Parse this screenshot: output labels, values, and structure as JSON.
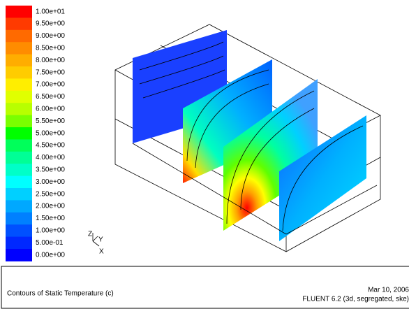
{
  "colorbar": {
    "labels": [
      "1.00e+01",
      "9.50e+00",
      "9.00e+00",
      "8.50e+00",
      "8.00e+00",
      "7.50e+00",
      "7.00e+00",
      "6.50e+00",
      "6.00e+00",
      "5.50e+00",
      "5.00e+00",
      "4.50e+00",
      "4.00e+00",
      "3.50e+00",
      "3.00e+00",
      "2.50e+00",
      "2.00e+00",
      "1.50e+00",
      "1.00e+00",
      "5.00e-01",
      "0.00e+00"
    ],
    "colors": [
      "#ff0000",
      "#ff3a00",
      "#ff6a00",
      "#ff8c00",
      "#ffad00",
      "#ffcc00",
      "#ffee00",
      "#e0ff00",
      "#b8ff00",
      "#7aff00",
      "#00ff00",
      "#00ff5a",
      "#00ff96",
      "#00ffc8",
      "#00ffff",
      "#00d0ff",
      "#00a8ff",
      "#0080ff",
      "#0050ff",
      "#0028ff",
      "#0000ff"
    ]
  },
  "axes": {
    "z": "Z",
    "y": "Y",
    "x": "X"
  },
  "footer": {
    "title": "Contours of Static Temperature (c)",
    "date": "Mar 10, 2006",
    "solver": "FLUENT 6.2 (3d, segregated, ske)"
  }
}
